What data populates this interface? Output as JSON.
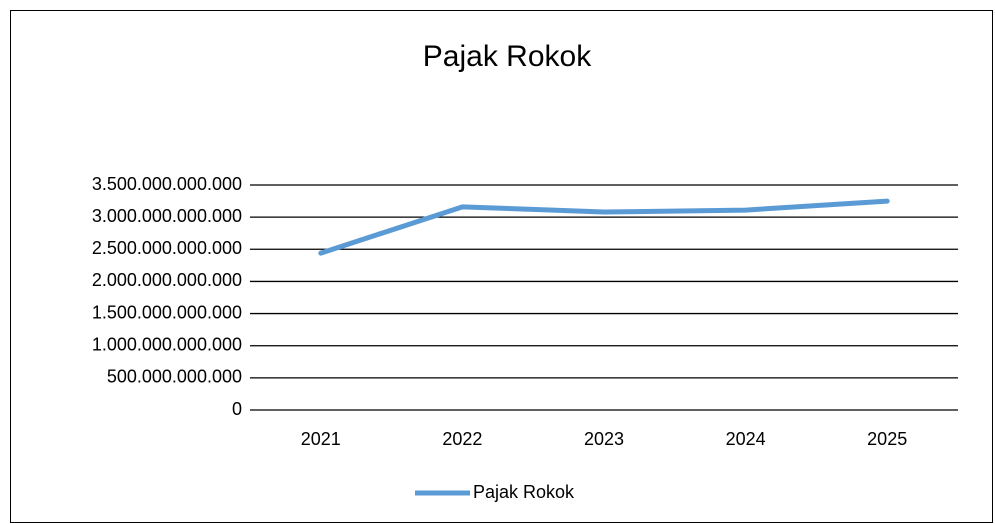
{
  "chart_data": {
    "type": "line",
    "title": "Pajak Rokok",
    "categories": [
      "2021",
      "2022",
      "2023",
      "2024",
      "2025"
    ],
    "series": [
      {
        "name": "Pajak Rokok",
        "color": "#5b9bd5",
        "values": [
          2440000000000,
          3160000000000,
          3080000000000,
          3110000000000,
          3250000000000
        ]
      }
    ],
    "ylim": [
      0,
      3500000000000
    ],
    "yticks": [
      0,
      {
        "value": 500000000000,
        "label": "500.000.000.000"
      },
      {
        "value": 1000000000000,
        "label": "1.000.000.000.000"
      },
      {
        "value": 1500000000000,
        "label": "1.500.000.000.000"
      },
      {
        "value": 2000000000000,
        "label": "2.000.000.000.000"
      },
      {
        "value": 2500000000000,
        "label": "2.500.000.000.000"
      },
      {
        "value": 3000000000000,
        "label": "3.000.000.000.000"
      },
      {
        "value": 3500000000000,
        "label": "3.500.000.000.000"
      }
    ],
    "grid": true,
    "legend": "bottom"
  }
}
